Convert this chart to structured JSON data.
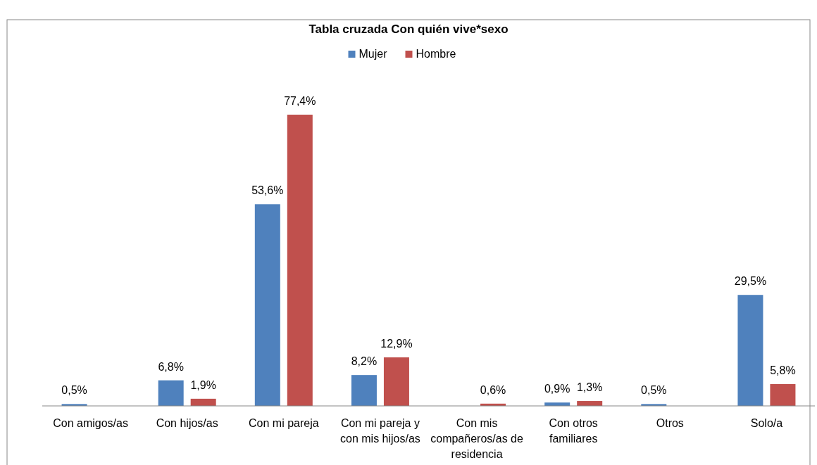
{
  "chart_data": {
    "type": "bar",
    "title": "Tabla cruzada Con quién vive*sexo",
    "categories": [
      "Con amigos/as",
      "Con hijos/as",
      "Con mi pareja",
      "Con mi pareja y con mis hijos/as",
      "Con mis compañeros/as de residencia",
      "Con otros familiares",
      "Otros",
      "Solo/a"
    ],
    "series": [
      {
        "name": "Mujer",
        "color": "#4f81bd",
        "values": [
          0.5,
          6.8,
          53.6,
          8.2,
          null,
          0.9,
          0.5,
          29.5
        ],
        "value_labels": [
          "0,5%",
          "6,8%",
          "53,6%",
          "8,2%",
          null,
          "0,9%",
          "0,5%",
          "29,5%"
        ]
      },
      {
        "name": "Hombre",
        "color": "#c0504d",
        "values": [
          null,
          1.9,
          77.4,
          12.9,
          0.6,
          1.3,
          null,
          5.8
        ],
        "value_labels": [
          null,
          "1,9%",
          "77,4%",
          "12,9%",
          "0,6%",
          "1,3%",
          null,
          "5,8%"
        ]
      }
    ],
    "legend": "top",
    "grid": false
  }
}
